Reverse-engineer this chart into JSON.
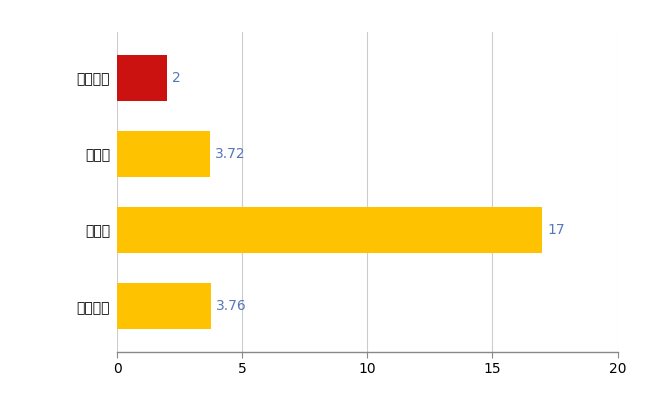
{
  "categories": [
    "南伊勢町",
    "県平均",
    "県最大",
    "全国平均"
  ],
  "values": [
    2,
    3.72,
    17,
    3.76
  ],
  "bar_colors": [
    "#CC1111",
    "#FFC200",
    "#FFC200",
    "#FFC200"
  ],
  "value_labels": [
    "2",
    "3.72",
    "17",
    "3.76"
  ],
  "xlim": [
    0,
    20
  ],
  "xticks": [
    0,
    5,
    10,
    15,
    20
  ],
  "bar_height": 0.6,
  "label_fontsize": 10,
  "tick_fontsize": 10,
  "value_color": "#5577BB",
  "grid_color": "#CCCCCC",
  "background_color": "#FFFFFF"
}
